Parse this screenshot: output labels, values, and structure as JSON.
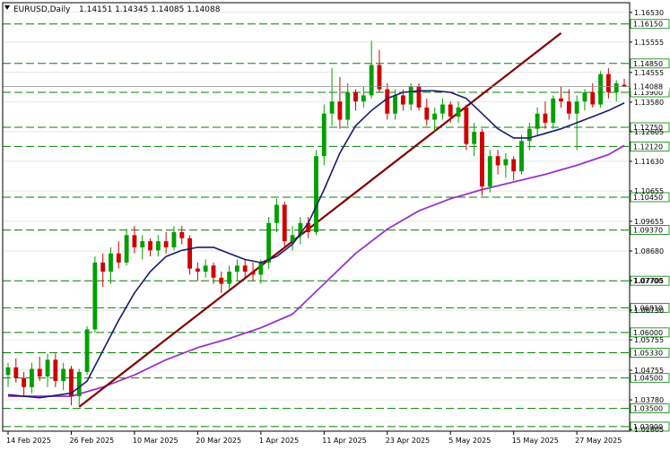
{
  "header": {
    "symbol": "EURUSD,Daily",
    "ohlc": "1.14151 1.14345 1.14085 1.14088"
  },
  "colors": {
    "background": "#ffffff",
    "grid": "#d8d8d8",
    "level_line": "#008000",
    "bull_candle": "#00a000",
    "bear_candle": "#d00000",
    "ma_fast": "#1a1a6e",
    "ma_slow": "#9933cc",
    "trendline": "#800000",
    "axis": "#000000"
  },
  "chart_data": {
    "type": "candlestick",
    "symbol": "EURUSD",
    "timeframe": "Daily",
    "ylim": [
      1.0275,
      1.1685
    ],
    "y_ticks": [
      "1.16530",
      "1.15555",
      "1.14555",
      "1.13580",
      "1.12605",
      "1.11630",
      "1.10655",
      "1.09655",
      "1.08680",
      "1.07705",
      "1.06730",
      "1.05755",
      "1.04755",
      "1.03780",
      "1.02805"
    ],
    "levels": [
      "1.16150",
      "1.14850",
      "1.13900",
      "1.12750",
      "1.12120",
      "1.10450",
      "1.09370",
      "1.07700",
      "1.06810",
      "1.06000",
      "1.05330",
      "1.04500",
      "1.03500",
      "1.02900"
    ],
    "current_price": "1.14088",
    "x_labels": [
      {
        "label": "14 Feb 2025",
        "index": 0
      },
      {
        "label": "26 Feb 2025",
        "index": 8
      },
      {
        "label": "10 Mar 2025",
        "index": 16
      },
      {
        "label": "20 Mar 2025",
        "index": 24
      },
      {
        "label": "1 Apr 2025",
        "index": 32
      },
      {
        "label": "11 Apr 2025",
        "index": 40
      },
      {
        "label": "23 Apr 2025",
        "index": 48
      },
      {
        "label": "5 May 2025",
        "index": 56
      },
      {
        "label": "15 May 2025",
        "index": 64
      },
      {
        "label": "27 May 2025",
        "index": 72
      }
    ],
    "candles": [
      {
        "o": 1.046,
        "h": 1.05,
        "l": 1.042,
        "c": 1.0485
      },
      {
        "o": 1.0485,
        "h": 1.0515,
        "l": 1.0435,
        "c": 1.045
      },
      {
        "o": 1.045,
        "h": 1.047,
        "l": 1.039,
        "c": 1.042
      },
      {
        "o": 1.042,
        "h": 1.05,
        "l": 1.04,
        "c": 1.048
      },
      {
        "o": 1.048,
        "h": 1.052,
        "l": 1.044,
        "c": 1.0455
      },
      {
        "o": 1.0455,
        "h": 1.053,
        "l": 1.042,
        "c": 1.051
      },
      {
        "o": 1.051,
        "h": 1.053,
        "l": 1.042,
        "c": 1.044
      },
      {
        "o": 1.044,
        "h": 1.05,
        "l": 1.041,
        "c": 1.048
      },
      {
        "o": 1.048,
        "h": 1.049,
        "l": 1.036,
        "c": 1.039
      },
      {
        "o": 1.039,
        "h": 1.048,
        "l": 1.036,
        "c": 1.047
      },
      {
        "o": 1.047,
        "h": 1.062,
        "l": 1.046,
        "c": 1.061
      },
      {
        "o": 1.061,
        "h": 1.085,
        "l": 1.06,
        "c": 1.083
      },
      {
        "o": 1.083,
        "h": 1.086,
        "l": 1.075,
        "c": 1.08
      },
      {
        "o": 1.08,
        "h": 1.088,
        "l": 1.076,
        "c": 1.086
      },
      {
        "o": 1.086,
        "h": 1.09,
        "l": 1.081,
        "c": 1.083
      },
      {
        "o": 1.083,
        "h": 1.094,
        "l": 1.082,
        "c": 1.092
      },
      {
        "o": 1.092,
        "h": 1.095,
        "l": 1.086,
        "c": 1.088
      },
      {
        "o": 1.088,
        "h": 1.092,
        "l": 1.084,
        "c": 1.09
      },
      {
        "o": 1.09,
        "h": 1.091,
        "l": 1.085,
        "c": 1.087
      },
      {
        "o": 1.087,
        "h": 1.092,
        "l": 1.085,
        "c": 1.09
      },
      {
        "o": 1.09,
        "h": 1.093,
        "l": 1.086,
        "c": 1.088
      },
      {
        "o": 1.088,
        "h": 1.095,
        "l": 1.087,
        "c": 1.093
      },
      {
        "o": 1.093,
        "h": 1.095,
        "l": 1.089,
        "c": 1.091
      },
      {
        "o": 1.091,
        "h": 1.092,
        "l": 1.079,
        "c": 1.081
      },
      {
        "o": 1.081,
        "h": 1.083,
        "l": 1.077,
        "c": 1.08
      },
      {
        "o": 1.08,
        "h": 1.084,
        "l": 1.078,
        "c": 1.082
      },
      {
        "o": 1.082,
        "h": 1.083,
        "l": 1.076,
        "c": 1.078
      },
      {
        "o": 1.078,
        "h": 1.08,
        "l": 1.073,
        "c": 1.076
      },
      {
        "o": 1.076,
        "h": 1.082,
        "l": 1.074,
        "c": 1.08
      },
      {
        "o": 1.08,
        "h": 1.084,
        "l": 1.077,
        "c": 1.082
      },
      {
        "o": 1.082,
        "h": 1.084,
        "l": 1.078,
        "c": 1.08
      },
      {
        "o": 1.08,
        "h": 1.083,
        "l": 1.077,
        "c": 1.079
      },
      {
        "o": 1.079,
        "h": 1.084,
        "l": 1.076,
        "c": 1.083
      },
      {
        "o": 1.083,
        "h": 1.098,
        "l": 1.081,
        "c": 1.096
      },
      {
        "o": 1.096,
        "h": 1.104,
        "l": 1.093,
        "c": 1.102
      },
      {
        "o": 1.102,
        "h": 1.103,
        "l": 1.088,
        "c": 1.09
      },
      {
        "o": 1.09,
        "h": 1.095,
        "l": 1.087,
        "c": 1.092
      },
      {
        "o": 1.092,
        "h": 1.098,
        "l": 1.089,
        "c": 1.096
      },
      {
        "o": 1.096,
        "h": 1.098,
        "l": 1.091,
        "c": 1.093
      },
      {
        "o": 1.093,
        "h": 1.12,
        "l": 1.092,
        "c": 1.118
      },
      {
        "o": 1.118,
        "h": 1.135,
        "l": 1.115,
        "c": 1.132
      },
      {
        "o": 1.132,
        "h": 1.147,
        "l": 1.128,
        "c": 1.136
      },
      {
        "o": 1.136,
        "h": 1.144,
        "l": 1.127,
        "c": 1.13
      },
      {
        "o": 1.13,
        "h": 1.142,
        "l": 1.128,
        "c": 1.139
      },
      {
        "o": 1.139,
        "h": 1.14,
        "l": 1.133,
        "c": 1.136
      },
      {
        "o": 1.136,
        "h": 1.141,
        "l": 1.134,
        "c": 1.138
      },
      {
        "o": 1.138,
        "h": 1.156,
        "l": 1.137,
        "c": 1.148
      },
      {
        "o": 1.148,
        "h": 1.153,
        "l": 1.139,
        "c": 1.14
      },
      {
        "o": 1.14,
        "h": 1.142,
        "l": 1.13,
        "c": 1.132
      },
      {
        "o": 1.132,
        "h": 1.14,
        "l": 1.13,
        "c": 1.138
      },
      {
        "o": 1.138,
        "h": 1.14,
        "l": 1.133,
        "c": 1.135
      },
      {
        "o": 1.135,
        "h": 1.142,
        "l": 1.133,
        "c": 1.141
      },
      {
        "o": 1.141,
        "h": 1.142,
        "l": 1.133,
        "c": 1.134
      },
      {
        "o": 1.134,
        "h": 1.137,
        "l": 1.128,
        "c": 1.13
      },
      {
        "o": 1.13,
        "h": 1.134,
        "l": 1.126,
        "c": 1.132
      },
      {
        "o": 1.132,
        "h": 1.137,
        "l": 1.13,
        "c": 1.135
      },
      {
        "o": 1.135,
        "h": 1.136,
        "l": 1.129,
        "c": 1.131
      },
      {
        "o": 1.131,
        "h": 1.136,
        "l": 1.129,
        "c": 1.134
      },
      {
        "o": 1.134,
        "h": 1.135,
        "l": 1.12,
        "c": 1.122
      },
      {
        "o": 1.122,
        "h": 1.129,
        "l": 1.118,
        "c": 1.126
      },
      {
        "o": 1.126,
        "h": 1.127,
        "l": 1.105,
        "c": 1.108
      },
      {
        "o": 1.108,
        "h": 1.12,
        "l": 1.106,
        "c": 1.118
      },
      {
        "o": 1.118,
        "h": 1.12,
        "l": 1.112,
        "c": 1.115
      },
      {
        "o": 1.115,
        "h": 1.119,
        "l": 1.111,
        "c": 1.117
      },
      {
        "o": 1.117,
        "h": 1.118,
        "l": 1.11,
        "c": 1.113
      },
      {
        "o": 1.113,
        "h": 1.125,
        "l": 1.112,
        "c": 1.123
      },
      {
        "o": 1.123,
        "h": 1.129,
        "l": 1.12,
        "c": 1.127
      },
      {
        "o": 1.127,
        "h": 1.134,
        "l": 1.125,
        "c": 1.132
      },
      {
        "o": 1.132,
        "h": 1.136,
        "l": 1.127,
        "c": 1.129
      },
      {
        "o": 1.129,
        "h": 1.138,
        "l": 1.127,
        "c": 1.137
      },
      {
        "o": 1.137,
        "h": 1.141,
        "l": 1.134,
        "c": 1.136
      },
      {
        "o": 1.136,
        "h": 1.14,
        "l": 1.13,
        "c": 1.132
      },
      {
        "o": 1.132,
        "h": 1.138,
        "l": 1.12,
        "c": 1.136
      },
      {
        "o": 1.136,
        "h": 1.14,
        "l": 1.133,
        "c": 1.139
      },
      {
        "o": 1.139,
        "h": 1.142,
        "l": 1.134,
        "c": 1.135
      },
      {
        "o": 1.135,
        "h": 1.146,
        "l": 1.134,
        "c": 1.145
      },
      {
        "o": 1.145,
        "h": 1.147,
        "l": 1.137,
        "c": 1.139
      },
      {
        "o": 1.139,
        "h": 1.143,
        "l": 1.136,
        "c": 1.142
      },
      {
        "o": 1.1415,
        "h": 1.14345,
        "l": 1.14085,
        "c": 1.14088
      }
    ],
    "ma_fast": [
      {
        "i": 0,
        "v": 1.0395
      },
      {
        "i": 4,
        "v": 1.0385
      },
      {
        "i": 8,
        "v": 1.04
      },
      {
        "i": 10,
        "v": 1.044
      },
      {
        "i": 12,
        "v": 1.054
      },
      {
        "i": 14,
        "v": 1.064
      },
      {
        "i": 16,
        "v": 1.073
      },
      {
        "i": 18,
        "v": 1.08
      },
      {
        "i": 20,
        "v": 1.085
      },
      {
        "i": 22,
        "v": 1.087
      },
      {
        "i": 24,
        "v": 1.088
      },
      {
        "i": 26,
        "v": 1.088
      },
      {
        "i": 28,
        "v": 1.086
      },
      {
        "i": 30,
        "v": 1.084
      },
      {
        "i": 32,
        "v": 1.083
      },
      {
        "i": 34,
        "v": 1.085
      },
      {
        "i": 36,
        "v": 1.089
      },
      {
        "i": 38,
        "v": 1.096
      },
      {
        "i": 40,
        "v": 1.107
      },
      {
        "i": 42,
        "v": 1.119
      },
      {
        "i": 44,
        "v": 1.128
      },
      {
        "i": 46,
        "v": 1.133
      },
      {
        "i": 48,
        "v": 1.137
      },
      {
        "i": 50,
        "v": 1.139
      },
      {
        "i": 52,
        "v": 1.1395
      },
      {
        "i": 54,
        "v": 1.1395
      },
      {
        "i": 56,
        "v": 1.139
      },
      {
        "i": 58,
        "v": 1.137
      },
      {
        "i": 60,
        "v": 1.132
      },
      {
        "i": 62,
        "v": 1.127
      },
      {
        "i": 64,
        "v": 1.124
      },
      {
        "i": 66,
        "v": 1.124
      },
      {
        "i": 68,
        "v": 1.1255
      },
      {
        "i": 70,
        "v": 1.127
      },
      {
        "i": 72,
        "v": 1.129
      },
      {
        "i": 74,
        "v": 1.131
      },
      {
        "i": 76,
        "v": 1.133
      },
      {
        "i": 78,
        "v": 1.1355
      }
    ],
    "ma_slow": [
      {
        "i": 0,
        "v": 1.039
      },
      {
        "i": 8,
        "v": 1.039
      },
      {
        "i": 12,
        "v": 1.042
      },
      {
        "i": 16,
        "v": 1.046
      },
      {
        "i": 20,
        "v": 1.051
      },
      {
        "i": 24,
        "v": 1.055
      },
      {
        "i": 28,
        "v": 1.058
      },
      {
        "i": 32,
        "v": 1.0615
      },
      {
        "i": 36,
        "v": 1.066
      },
      {
        "i": 40,
        "v": 1.076
      },
      {
        "i": 44,
        "v": 1.086
      },
      {
        "i": 48,
        "v": 1.094
      },
      {
        "i": 52,
        "v": 1.1
      },
      {
        "i": 56,
        "v": 1.104
      },
      {
        "i": 60,
        "v": 1.107
      },
      {
        "i": 64,
        "v": 1.1095
      },
      {
        "i": 68,
        "v": 1.112
      },
      {
        "i": 72,
        "v": 1.115
      },
      {
        "i": 76,
        "v": 1.1185
      },
      {
        "i": 78,
        "v": 1.1215
      }
    ],
    "trendline": [
      {
        "i": 9,
        "v": 1.0355
      },
      {
        "i": 70,
        "v": 1.1585
      }
    ],
    "grid": true
  }
}
